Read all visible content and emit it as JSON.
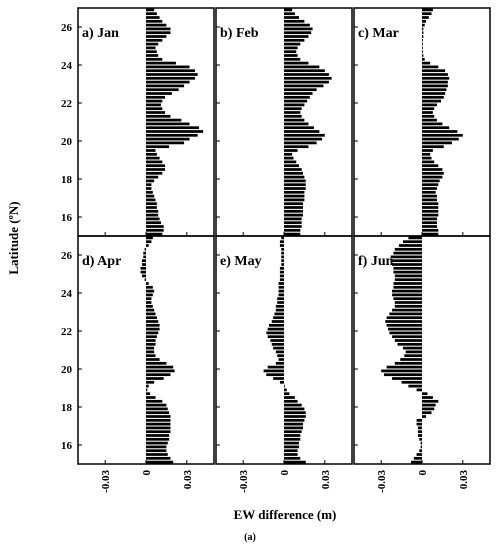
{
  "chart_data": {
    "type": "bar",
    "orientation": "horizontal",
    "xlabel": "EW difference (m)",
    "ylabel": "Latitude (ºN)",
    "caption": "(a)",
    "xlim": [
      -0.05,
      0.05
    ],
    "ylim": [
      15,
      27
    ],
    "x_ticks": [
      -0.03,
      0,
      0.03
    ],
    "x_tick_labels": [
      "-0.03",
      "0",
      "0.03"
    ],
    "y_ticks": [
      16,
      18,
      20,
      22,
      24,
      26
    ],
    "y_tick_labels": [
      "16",
      "18",
      "20",
      "22",
      "24",
      "26"
    ],
    "bar_color": "#000000",
    "grid": false,
    "latitudes": [
      15.1,
      15.3,
      15.5,
      15.7,
      15.9,
      16.1,
      16.3,
      16.5,
      16.7,
      16.9,
      17.1,
      17.3,
      17.5,
      17.7,
      17.9,
      18.1,
      18.3,
      18.5,
      18.7,
      18.9,
      19.1,
      19.3,
      19.5,
      19.7,
      19.9,
      20.1,
      20.3,
      20.5,
      20.7,
      20.9,
      21.1,
      21.3,
      21.5,
      21.7,
      21.9,
      22.1,
      22.3,
      22.5,
      22.7,
      22.9,
      23.1,
      23.3,
      23.5,
      23.7,
      23.9,
      24.1,
      24.3,
      24.5,
      24.7,
      24.9,
      25.1,
      25.3,
      25.5,
      25.7,
      25.9,
      26.1,
      26.3,
      26.5,
      26.7,
      26.9
    ],
    "panels": [
      {
        "label": "a) Jan",
        "values": [
          0.012,
          0.013,
          0.013,
          0.011,
          0.01,
          0.009,
          0.009,
          0.008,
          0.008,
          0.007,
          0.006,
          0.005,
          0.004,
          0.004,
          0.006,
          0.009,
          0.012,
          0.014,
          0.014,
          0.012,
          0.01,
          0.008,
          0.007,
          0.017,
          0.028,
          0.032,
          0.038,
          0.042,
          0.039,
          0.032,
          0.026,
          0.018,
          0.014,
          0.012,
          0.011,
          0.012,
          0.014,
          0.019,
          0.024,
          0.028,
          0.032,
          0.036,
          0.038,
          0.036,
          0.032,
          0.022,
          0.012,
          0.009,
          0.008,
          0.007,
          0.009,
          0.012,
          0.015,
          0.018,
          0.018,
          0.015,
          0.012,
          0.01,
          0.008,
          0.006
        ]
      },
      {
        "label": "b) Feb",
        "values": [
          0.012,
          0.012,
          0.013,
          0.013,
          0.013,
          0.014,
          0.014,
          0.014,
          0.014,
          0.015,
          0.015,
          0.015,
          0.016,
          0.016,
          0.016,
          0.015,
          0.014,
          0.013,
          0.011,
          0.009,
          0.007,
          0.006,
          0.01,
          0.018,
          0.024,
          0.028,
          0.03,
          0.026,
          0.022,
          0.018,
          0.015,
          0.013,
          0.012,
          0.013,
          0.015,
          0.017,
          0.019,
          0.021,
          0.024,
          0.029,
          0.033,
          0.035,
          0.033,
          0.03,
          0.026,
          0.018,
          0.012,
          0.01,
          0.009,
          0.01,
          0.012,
          0.015,
          0.018,
          0.02,
          0.021,
          0.019,
          0.015,
          0.011,
          0.008,
          0.006
        ]
      },
      {
        "label": "c) Mar",
        "values": [
          0.012,
          0.012,
          0.011,
          0.011,
          0.011,
          0.012,
          0.012,
          0.012,
          0.012,
          0.011,
          0.011,
          0.01,
          0.011,
          0.012,
          0.013,
          0.015,
          0.016,
          0.015,
          0.012,
          0.009,
          0.007,
          0.006,
          0.008,
          0.016,
          0.022,
          0.027,
          0.03,
          0.026,
          0.02,
          0.015,
          0.011,
          0.009,
          0.008,
          0.009,
          0.011,
          0.014,
          0.016,
          0.017,
          0.018,
          0.019,
          0.019,
          0.02,
          0.019,
          0.017,
          0.012,
          0.006,
          0.002,
          0.001,
          0.0,
          0.0,
          0.0,
          0.0,
          0.001,
          0.001,
          0.001,
          0.002,
          0.003,
          0.005,
          0.007,
          0.008
        ]
      },
      {
        "label": "d) Apr",
        "values": [
          0.02,
          0.018,
          0.016,
          0.015,
          0.015,
          0.016,
          0.017,
          0.017,
          0.018,
          0.018,
          0.018,
          0.018,
          0.018,
          0.017,
          0.016,
          0.015,
          0.012,
          0.007,
          0.003,
          0.001,
          0.002,
          0.006,
          0.013,
          0.018,
          0.021,
          0.02,
          0.015,
          0.01,
          0.007,
          0.006,
          0.006,
          0.007,
          0.007,
          0.008,
          0.009,
          0.01,
          0.01,
          0.009,
          0.008,
          0.007,
          0.006,
          0.005,
          0.004,
          0.004,
          0.005,
          0.006,
          0.005,
          0.002,
          -0.001,
          -0.003,
          -0.004,
          -0.004,
          -0.003,
          -0.003,
          -0.002,
          -0.002,
          -0.001,
          0.002,
          0.004,
          0.005
        ]
      },
      {
        "label": "e) May",
        "values": [
          0.016,
          0.012,
          0.01,
          0.01,
          0.011,
          0.011,
          0.012,
          0.012,
          0.013,
          0.014,
          0.014,
          0.015,
          0.016,
          0.016,
          0.015,
          0.013,
          0.01,
          0.008,
          0.004,
          0.002,
          0.0,
          -0.003,
          -0.008,
          -0.013,
          -0.015,
          -0.012,
          -0.006,
          -0.004,
          -0.005,
          -0.006,
          -0.008,
          -0.009,
          -0.01,
          -0.012,
          -0.013,
          -0.012,
          -0.011,
          -0.009,
          -0.008,
          -0.007,
          -0.006,
          -0.006,
          -0.005,
          -0.005,
          -0.004,
          -0.004,
          -0.004,
          -0.004,
          -0.003,
          -0.003,
          -0.003,
          -0.003,
          -0.002,
          -0.002,
          -0.002,
          -0.002,
          -0.002,
          -0.003,
          -0.003,
          -0.002
        ]
      },
      {
        "label": "f) Jun",
        "values": [
          -0.008,
          -0.006,
          -0.004,
          -0.002,
          -0.001,
          -0.001,
          -0.002,
          -0.003,
          -0.003,
          -0.003,
          -0.004,
          -0.004,
          0.003,
          0.007,
          0.009,
          0.01,
          0.012,
          0.008,
          0.004,
          -0.004,
          -0.01,
          -0.015,
          -0.022,
          -0.028,
          -0.03,
          -0.026,
          -0.02,
          -0.016,
          -0.013,
          -0.012,
          -0.014,
          -0.018,
          -0.02,
          -0.022,
          -0.024,
          -0.025,
          -0.026,
          -0.027,
          -0.026,
          -0.024,
          -0.022,
          -0.02,
          -0.02,
          -0.021,
          -0.022,
          -0.022,
          -0.021,
          -0.021,
          -0.02,
          -0.02,
          -0.021,
          -0.021,
          -0.022,
          -0.023,
          -0.023,
          -0.021,
          -0.02,
          -0.017,
          -0.014,
          -0.01
        ]
      }
    ]
  }
}
